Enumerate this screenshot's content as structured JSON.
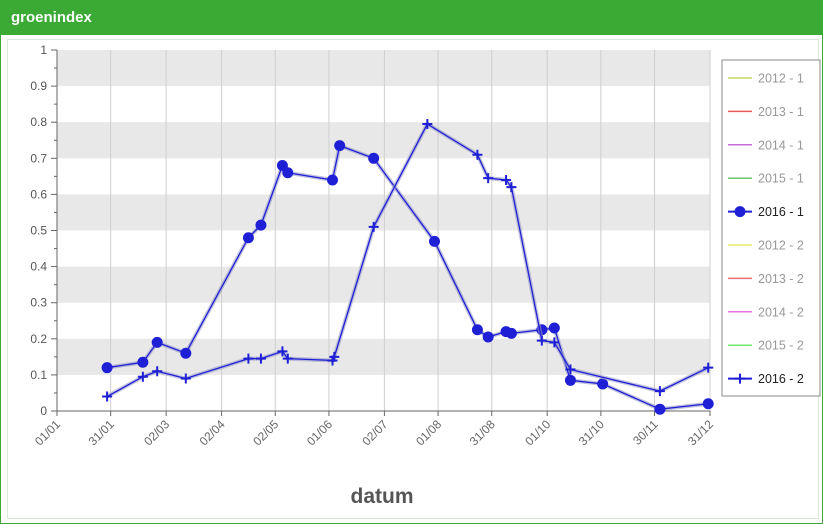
{
  "panel": {
    "title": "groenindex"
  },
  "colors": {
    "header": "#3aaa35",
    "band": "#e8e8e8",
    "series": "#1f1fd6"
  },
  "chart_data": {
    "type": "line",
    "title": "",
    "xlabel": "datum",
    "ylabel": "",
    "ylim": [
      0,
      1
    ],
    "yticks": [
      "0",
      "0.1",
      "0.2",
      "0.3",
      "0.4",
      "0.5",
      "0.6",
      "0.7",
      "0.8",
      "0.9",
      "1"
    ],
    "xticks": [
      "01/01",
      "31/01",
      "02/03",
      "02/04",
      "02/05",
      "01/06",
      "02/07",
      "01/08",
      "31/08",
      "01/10",
      "31/10",
      "30/11",
      "31/12"
    ],
    "grid": "horizontal alternating bands and vertical lines",
    "legend_position": "right",
    "legend": [
      {
        "label": "2012 - 1",
        "color": "#c8d86a",
        "marker": "none",
        "active": false
      },
      {
        "label": "2013 - 1",
        "color": "#e85858",
        "marker": "none",
        "active": false
      },
      {
        "label": "2014 - 1",
        "color": "#c86ad8",
        "marker": "none",
        "active": false
      },
      {
        "label": "2015 - 1",
        "color": "#6ac86a",
        "marker": "none",
        "active": false
      },
      {
        "label": "2016 - 1",
        "color": "#1f1fd6",
        "marker": "circle",
        "active": true
      },
      {
        "label": "2012 - 2",
        "color": "#e8e870",
        "marker": "none",
        "active": false
      },
      {
        "label": "2013 - 2",
        "color": "#e87070",
        "marker": "none",
        "active": false
      },
      {
        "label": "2014 - 2",
        "color": "#e870e8",
        "marker": "none",
        "active": false
      },
      {
        "label": "2015 - 2",
        "color": "#70e870",
        "marker": "none",
        "active": false
      },
      {
        "label": "2016 - 2",
        "color": "#1f1fd6",
        "marker": "plus",
        "active": true
      }
    ],
    "series": [
      {
        "name": "2016 - 1",
        "marker": "circle",
        "points": [
          [
            "2016-01-29",
            0.12
          ],
          [
            "2016-02-18",
            0.135
          ],
          [
            "2016-02-26",
            0.19
          ],
          [
            "2016-03-13",
            0.16
          ],
          [
            "2016-04-17",
            0.48
          ],
          [
            "2016-04-24",
            0.515
          ],
          [
            "2016-05-06",
            0.68
          ],
          [
            "2016-05-09",
            0.66
          ],
          [
            "2016-06-03",
            0.64
          ],
          [
            "2016-06-07",
            0.735
          ],
          [
            "2016-06-26",
            0.7
          ],
          [
            "2016-07-30",
            0.47
          ],
          [
            "2016-08-23",
            0.225
          ],
          [
            "2016-08-29",
            0.205
          ],
          [
            "2016-09-08",
            0.22
          ],
          [
            "2016-09-11",
            0.215
          ],
          [
            "2016-09-28",
            0.225
          ],
          [
            "2016-10-05",
            0.23
          ],
          [
            "2016-10-14",
            0.085
          ],
          [
            "2016-11-01",
            0.075
          ],
          [
            "2016-12-03",
            0.005
          ],
          [
            "2016-12-30",
            0.02
          ]
        ]
      },
      {
        "name": "2016 - 2",
        "marker": "plus",
        "points": [
          [
            "2016-01-29",
            0.04
          ],
          [
            "2016-02-18",
            0.095
          ],
          [
            "2016-02-26",
            0.11
          ],
          [
            "2016-03-13",
            0.09
          ],
          [
            "2016-04-17",
            0.145
          ],
          [
            "2016-04-24",
            0.145
          ],
          [
            "2016-05-06",
            0.165
          ],
          [
            "2016-05-09",
            0.145
          ],
          [
            "2016-06-03",
            0.14
          ],
          [
            "2016-06-04",
            0.15
          ],
          [
            "2016-06-26",
            0.51
          ],
          [
            "2016-07-26",
            0.795
          ],
          [
            "2016-08-23",
            0.71
          ],
          [
            "2016-08-29",
            0.645
          ],
          [
            "2016-09-08",
            0.64
          ],
          [
            "2016-09-11",
            0.62
          ],
          [
            "2016-09-28",
            0.195
          ],
          [
            "2016-10-05",
            0.19
          ],
          [
            "2016-10-14",
            0.115
          ],
          [
            "2016-12-03",
            0.055
          ],
          [
            "2016-12-30",
            0.12
          ]
        ]
      }
    ]
  }
}
